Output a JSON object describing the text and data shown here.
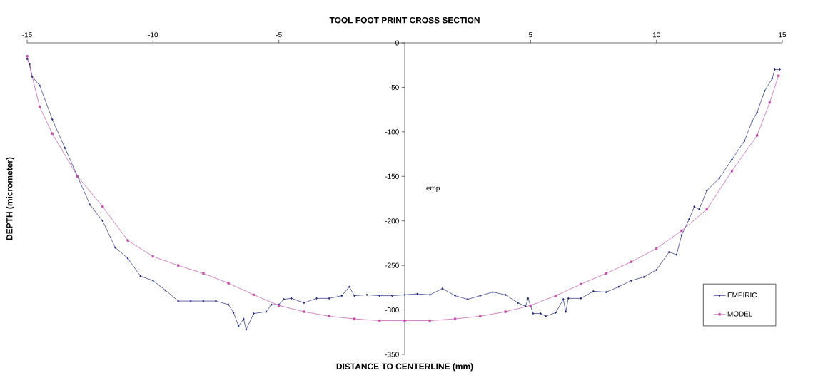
{
  "chart_data": {
    "type": "line",
    "title": "TOOL FOOT PRINT CROSS SECTION",
    "xlabel": "DISTANCE TO CENTERLINE (mm)",
    "ylabel": "DEPTH (micrometer)",
    "annotations": [
      "emp"
    ],
    "xlim": [
      -15,
      15
    ],
    "ylim": [
      -350,
      0
    ],
    "xticks": [
      -15,
      -10,
      -5,
      5,
      10,
      15
    ],
    "yticks": [
      -350,
      -300,
      -250,
      -200,
      -150,
      -100,
      -50,
      0
    ],
    "grid": false,
    "legend": "bottom right",
    "series": [
      {
        "name": "EMPIRIC",
        "color": "#1f2a7a",
        "marker": "diamond",
        "line_style": "solid",
        "x": [
          -15,
          -14.9,
          -14.8,
          -14.5,
          -14,
          -13.5,
          -13,
          -12.5,
          -12,
          -11.5,
          -11,
          -10.5,
          -10,
          -9.5,
          -9,
          -8.5,
          -8,
          -7.5,
          -7,
          -6.8,
          -6.6,
          -6.4,
          -6.3,
          -6,
          -5.5,
          -5.3,
          -5,
          -4.8,
          -4.5,
          -4,
          -3.5,
          -3,
          -2.5,
          -2.2,
          -2,
          -1.5,
          -1,
          -0.5,
          0,
          0.5,
          1,
          1.5,
          2,
          2.5,
          3,
          3.5,
          4,
          4.5,
          4.8,
          4.9,
          5.1,
          5.4,
          5.6,
          6,
          6.3,
          6.4,
          6.5,
          7,
          7.5,
          8,
          8.5,
          9,
          9.5,
          10,
          10.5,
          10.8,
          11,
          11.3,
          11.5,
          11.7,
          12,
          12.5,
          13,
          13.5,
          13.8,
          14,
          14.3,
          14.6,
          14.7,
          14.9
        ],
        "values": [
          -18,
          -24,
          -38,
          -48,
          -86,
          -118,
          -150,
          -182,
          -200,
          -230,
          -242,
          -262,
          -267,
          -278,
          -290,
          -290,
          -290,
          -290,
          -294,
          -303,
          -318,
          -310,
          -322,
          -304,
          -302,
          -294,
          -294,
          -288,
          -287,
          -292,
          -287,
          -287,
          -284,
          -274,
          -284,
          -283,
          -284,
          -284,
          -283,
          -282,
          -283,
          -276,
          -284,
          -288,
          -284,
          -280,
          -283,
          -292,
          -296,
          -287,
          -304,
          -304,
          -307,
          -303,
          -288,
          -302,
          -287,
          -287,
          -279,
          -280,
          -274,
          -267,
          -263,
          -255,
          -235,
          -238,
          -216,
          -198,
          -184,
          -187,
          -166,
          -152,
          -131,
          -110,
          -88,
          -78,
          -54,
          -40,
          -30,
          -30
        ]
      },
      {
        "name": "MODEL",
        "color": "#c04fa8",
        "marker": "square",
        "line_style": "solid",
        "x": [
          -15,
          -14.5,
          -14,
          -13,
          -12,
          -11,
          -10,
          -9,
          -8,
          -7,
          -6,
          -5,
          -4,
          -3,
          -2,
          -1,
          0,
          1,
          2,
          3,
          4,
          5,
          6,
          7,
          8,
          9,
          10,
          11,
          12,
          13,
          14,
          14.5,
          14.85
        ],
        "values": [
          -15,
          -72,
          -102,
          -150,
          -184,
          -222,
          -240,
          -250,
          -259,
          -270,
          -283,
          -295,
          -302,
          -307,
          -310,
          -312,
          -312,
          -312,
          -310,
          -307,
          -302,
          -295,
          -284,
          -271,
          -259,
          -246,
          -231,
          -211,
          -187,
          -144,
          -104,
          -67,
          -37
        ]
      }
    ]
  }
}
